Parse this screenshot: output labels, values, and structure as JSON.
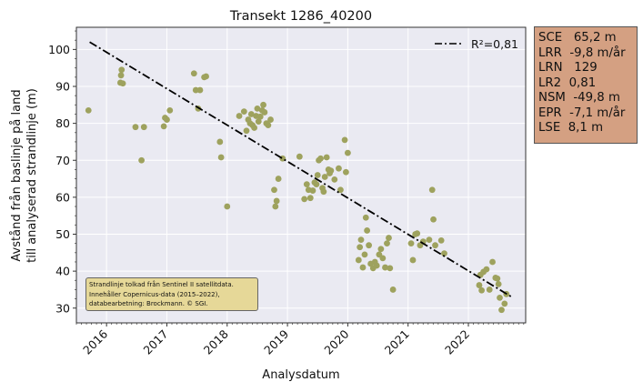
{
  "chart_data": {
    "type": "scatter",
    "title": "Transekt 1286_40200",
    "xlabel": "Analysdatum",
    "ylabel_line1": "Avstånd från baslinje på land",
    "ylabel_line2": "till analyserad strandlinje (m)",
    "xlim": [
      2015.5,
      2022.95
    ],
    "ylim": [
      26,
      106
    ],
    "x_ticks": [
      2016,
      2017,
      2018,
      2019,
      2020,
      2021,
      2022
    ],
    "x_tick_labels": [
      "2016",
      "2017",
      "2018",
      "2019",
      "2020",
      "2021",
      "2022"
    ],
    "y_ticks": [
      30,
      40,
      50,
      60,
      70,
      80,
      90,
      100
    ],
    "y_tick_labels": [
      "30",
      "40",
      "50",
      "60",
      "70",
      "80",
      "90",
      "100"
    ],
    "grid": true,
    "legend_position": "top-right",
    "trend": {
      "name": "R²=0,81",
      "x": [
        2015.72,
        2022.72
      ],
      "y": [
        102.0,
        33.0
      ],
      "color": "#000000",
      "style": "dash-dot"
    },
    "points_color": "#9ea25e",
    "points": [
      [
        2015.7,
        83.5
      ],
      [
        2016.25,
        94.5
      ],
      [
        2016.24,
        93.0
      ],
      [
        2016.23,
        91.0
      ],
      [
        2016.27,
        90.8
      ],
      [
        2016.48,
        79.0
      ],
      [
        2016.58,
        70.0
      ],
      [
        2016.62,
        79.0
      ],
      [
        2016.95,
        79.2
      ],
      [
        2016.97,
        81.5
      ],
      [
        2017.0,
        81.0
      ],
      [
        2017.05,
        83.5
      ],
      [
        2017.45,
        93.5
      ],
      [
        2017.48,
        89.0
      ],
      [
        2017.55,
        89.0
      ],
      [
        2017.52,
        84.0
      ],
      [
        2017.62,
        92.5
      ],
      [
        2017.65,
        92.7
      ],
      [
        2017.88,
        75.0
      ],
      [
        2017.9,
        70.8
      ],
      [
        2018.0,
        57.5
      ],
      [
        2018.2,
        82.0
      ],
      [
        2018.28,
        83.2
      ],
      [
        2018.32,
        78.0
      ],
      [
        2018.35,
        81.0
      ],
      [
        2018.38,
        80.0
      ],
      [
        2018.4,
        82.5
      ],
      [
        2018.42,
        79.5
      ],
      [
        2018.45,
        78.8
      ],
      [
        2018.48,
        82.0
      ],
      [
        2018.5,
        84.0
      ],
      [
        2018.52,
        80.5
      ],
      [
        2018.55,
        81.8
      ],
      [
        2018.58,
        83.5
      ],
      [
        2018.6,
        85.0
      ],
      [
        2018.62,
        83.0
      ],
      [
        2018.65,
        80.0
      ],
      [
        2018.68,
        79.5
      ],
      [
        2018.72,
        81.0
      ],
      [
        2018.78,
        62.0
      ],
      [
        2018.8,
        57.5
      ],
      [
        2018.82,
        59.0
      ],
      [
        2018.85,
        65.0
      ],
      [
        2018.92,
        70.5
      ],
      [
        2019.2,
        71.0
      ],
      [
        2019.28,
        59.5
      ],
      [
        2019.32,
        63.5
      ],
      [
        2019.35,
        62.0
      ],
      [
        2019.38,
        59.8
      ],
      [
        2019.42,
        61.8
      ],
      [
        2019.45,
        64.0
      ],
      [
        2019.48,
        63.5
      ],
      [
        2019.5,
        66.0
      ],
      [
        2019.52,
        70.0
      ],
      [
        2019.55,
        70.5
      ],
      [
        2019.58,
        62.5
      ],
      [
        2019.6,
        61.5
      ],
      [
        2019.62,
        65.5
      ],
      [
        2019.65,
        70.8
      ],
      [
        2019.68,
        67.5
      ],
      [
        2019.7,
        66.5
      ],
      [
        2019.72,
        67.2
      ],
      [
        2019.78,
        64.8
      ],
      [
        2019.85,
        67.8
      ],
      [
        2019.88,
        62.0
      ],
      [
        2019.95,
        75.5
      ],
      [
        2019.97,
        66.8
      ],
      [
        2020.0,
        72.0
      ],
      [
        2020.18,
        43.0
      ],
      [
        2020.2,
        46.5
      ],
      [
        2020.22,
        48.5
      ],
      [
        2020.25,
        41.0
      ],
      [
        2020.28,
        44.5
      ],
      [
        2020.3,
        54.5
      ],
      [
        2020.32,
        51.0
      ],
      [
        2020.35,
        47.0
      ],
      [
        2020.38,
        42.0
      ],
      [
        2020.42,
        40.8
      ],
      [
        2020.45,
        42.5
      ],
      [
        2020.48,
        41.5
      ],
      [
        2020.52,
        44.5
      ],
      [
        2020.55,
        46.0
      ],
      [
        2020.58,
        43.5
      ],
      [
        2020.62,
        41.0
      ],
      [
        2020.65,
        47.5
      ],
      [
        2020.68,
        49.0
      ],
      [
        2020.7,
        40.8
      ],
      [
        2020.75,
        35.0
      ],
      [
        2021.05,
        47.5
      ],
      [
        2021.08,
        43.0
      ],
      [
        2021.12,
        50.0
      ],
      [
        2021.15,
        50.2
      ],
      [
        2021.2,
        47.0
      ],
      [
        2021.25,
        48.0
      ],
      [
        2021.35,
        48.5
      ],
      [
        2021.4,
        62.0
      ],
      [
        2021.42,
        54.0
      ],
      [
        2021.45,
        47.0
      ],
      [
        2021.55,
        48.3
      ],
      [
        2021.6,
        44.8
      ],
      [
        2022.18,
        36.2
      ],
      [
        2022.2,
        39.0
      ],
      [
        2022.22,
        34.8
      ],
      [
        2022.25,
        39.8
      ],
      [
        2022.3,
        40.5
      ],
      [
        2022.35,
        35.0
      ],
      [
        2022.4,
        42.5
      ],
      [
        2022.45,
        38.2
      ],
      [
        2022.48,
        38.0
      ],
      [
        2022.5,
        36.5
      ],
      [
        2022.52,
        32.8
      ],
      [
        2022.55,
        29.5
      ],
      [
        2022.6,
        31.2
      ],
      [
        2022.63,
        33.8
      ]
    ]
  },
  "stats": [
    {
      "label": "SCE",
      "value": "65,2 m"
    },
    {
      "label": "LRR",
      "value": "-9,8 m/år"
    },
    {
      "label": "LRN",
      "value": "129"
    },
    {
      "label": "LR2",
      "value": "0,81"
    },
    {
      "label": "NSM",
      "value": "-49,8 m"
    },
    {
      "label": "EPR",
      "value": "-7,1 m/år"
    },
    {
      "label": "LSE",
      "value": "8,1 m"
    }
  ],
  "source_note": {
    "line1": "Strandlinje tolkad från Sentinel II satellitdata.",
    "line2": "Innehåller Copernicus-data (2015–2022),",
    "line3": "databearbetning: Brockmann. © SGI."
  }
}
